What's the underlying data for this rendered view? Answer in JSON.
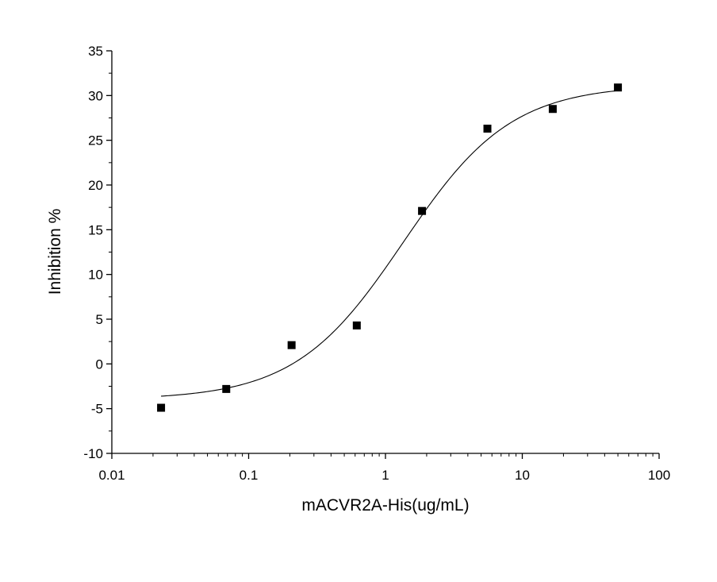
{
  "chart_data": {
    "type": "scatter",
    "title": "",
    "xlabel": "mACVR2A-His(ug/mL)",
    "ylabel": "Inhibition %",
    "x_scale": "log",
    "xlim": [
      0.01,
      100
    ],
    "ylim": [
      -10,
      35
    ],
    "x_ticks": [
      0.01,
      0.1,
      1,
      10,
      100
    ],
    "x_tick_labels": [
      "0.01",
      "0.1",
      "1",
      "10",
      "100"
    ],
    "y_ticks": [
      -10,
      -5,
      0,
      5,
      10,
      15,
      20,
      25,
      30,
      35
    ],
    "y_tick_labels": [
      "-10",
      "-5",
      "0",
      "5",
      "10",
      "15",
      "20",
      "25",
      "30",
      "35"
    ],
    "grid": false,
    "series": [
      {
        "marker": "square",
        "color": "#000000",
        "x": [
          0.0229,
          0.0686,
          0.206,
          0.617,
          1.85,
          5.56,
          16.7,
          50
        ],
        "y": [
          -4.9,
          -2.8,
          2.1,
          4.3,
          17.1,
          26.3,
          28.5,
          30.9
        ]
      }
    ],
    "fit": {
      "type": "logistic",
      "color": "#000000",
      "x_range": [
        0.0229,
        50
      ],
      "bottom": -4.0,
      "top": 31.2,
      "ec50": 1.35,
      "hill": 1.1
    }
  }
}
